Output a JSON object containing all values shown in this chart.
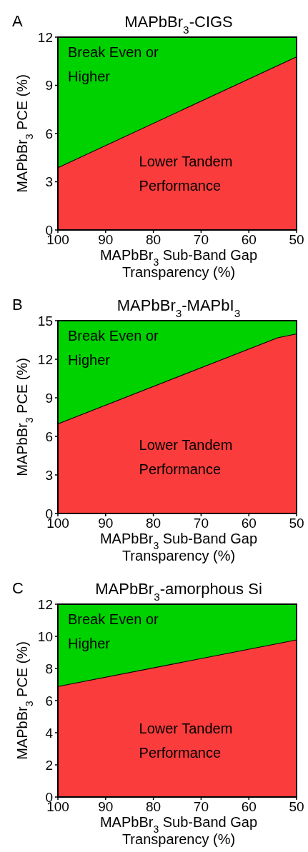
{
  "chart_data": [
    {
      "type": "area",
      "title": "MAPbBr$_{3}$-CIGS",
      "annotations": [
        "A"
      ],
      "xlabel": "MAPbBr$_{3}$ Sub-Band Gap Transparency (%)",
      "ylabel": "MAPbBr$_{3}$ PCE (%)",
      "x": [
        100,
        50
      ],
      "stacked": true,
      "series": [
        {
          "name": "Lower Tandem Performance",
          "color": "#fa3c3c",
          "values": [
            3.9,
            10.8
          ]
        },
        {
          "name": "Break Even or Higher",
          "color": "#00d200",
          "values": [
            8.1,
            1.2
          ]
        }
      ],
      "xlim": [
        100,
        50
      ],
      "xticks": [
        100,
        90,
        80,
        70,
        60,
        50
      ],
      "ylim": [
        0,
        12
      ],
      "yticks": [
        0,
        3,
        6,
        9,
        12
      ]
    },
    {
      "type": "area",
      "title": "MAPbBr$_{3}$-MAPbI$_{3}$",
      "annotations": [
        "B"
      ],
      "xlabel": "MAPbBr$_{3}$ Sub-Band Gap Transparency (%)",
      "ylabel": "MAPbBr$_{3}$ PCE (%)",
      "x": [
        100,
        54,
        50
      ],
      "stacked": true,
      "series": [
        {
          "name": "Lower Tandem Performance",
          "color": "#fa3c3c",
          "values": [
            7.0,
            13.7,
            14.0
          ]
        },
        {
          "name": "Break Even or Higher",
          "color": "#00d200",
          "values": [
            8.0,
            1.3,
            1.0
          ]
        }
      ],
      "xlim": [
        100,
        50
      ],
      "xticks": [
        100,
        90,
        80,
        70,
        60,
        50
      ],
      "ylim": [
        0,
        15
      ],
      "yticks": [
        0,
        3,
        6,
        9,
        12,
        15
      ]
    },
    {
      "type": "area",
      "title": "MAPbBr$_{3}$-amorphous Si",
      "annotations": [
        "C"
      ],
      "xlabel": "MAPbBr$_{3}$ Sub-Band Gap Transparency (%)",
      "ylabel": "MAPbBr$_{3}$ PCE (%)",
      "x": [
        100,
        50
      ],
      "stacked": true,
      "series": [
        {
          "name": "Lower Tandem Performance",
          "color": "#fa3c3c",
          "values": [
            6.9,
            9.8
          ]
        },
        {
          "name": "Break Even or Higher",
          "color": "#00d200",
          "values": [
            5.1,
            2.2
          ]
        }
      ],
      "xlim": [
        100,
        50
      ],
      "xticks": [
        100,
        90,
        80,
        70,
        60,
        50
      ],
      "ylim": [
        0,
        12
      ],
      "yticks": [
        0,
        2,
        4,
        6,
        8,
        10,
        12
      ]
    }
  ]
}
